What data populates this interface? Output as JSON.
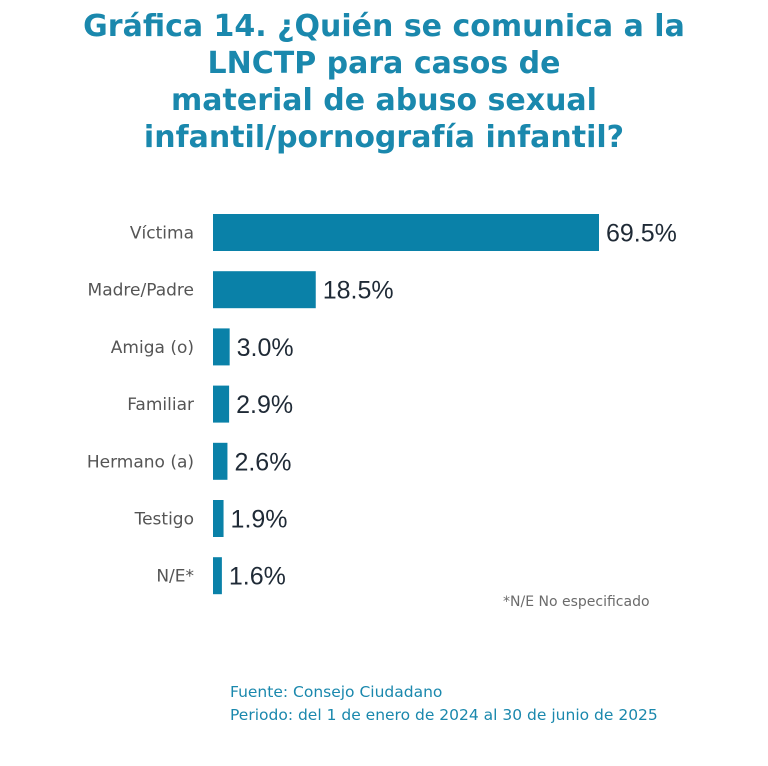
{
  "title_lines": [
    "Gráfica 14. ¿Quién se comunica a la",
    "LNCTP para casos de",
    "material de abuso sexual",
    "infantil/pornografía infantil?"
  ],
  "note": "*N/E  No especificado",
  "footer": {
    "source": "Fuente: Consejo Ciudadano",
    "period": "Periodo: del 1 de enero de 2024 al 30 de junio de 2025"
  },
  "colors": {
    "bar": "#0a81a8",
    "title": "#1a88ad",
    "category_text": "#555555",
    "value_text": "#1f2a36"
  },
  "chart_data": {
    "type": "bar",
    "orientation": "horizontal",
    "categories": [
      "Víctima",
      "Madre/Padre",
      "Amiga (o)",
      "Familiar",
      "Hermano (a)",
      "Testigo",
      "N/E*"
    ],
    "values": [
      69.5,
      18.5,
      3.0,
      2.9,
      2.6,
      1.9,
      1.6
    ],
    "value_labels": [
      "69.5%",
      "18.5%",
      "3.0%",
      "2.9%",
      "2.6%",
      "1.9%",
      "1.6%"
    ],
    "unit": "%",
    "grid": false,
    "legend": "none"
  }
}
